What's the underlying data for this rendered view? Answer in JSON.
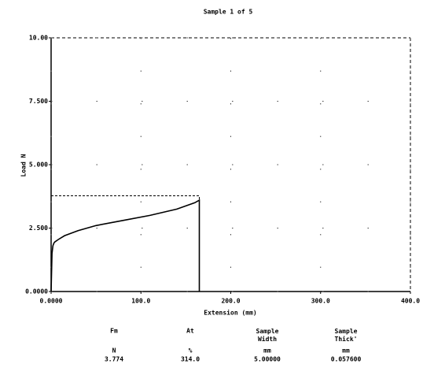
{
  "chart_data": {
    "type": "line",
    "title": "Sample 1 of 5",
    "xlabel": "Extension (mm)",
    "ylabel": "Load N",
    "x": [
      0,
      1,
      2,
      3,
      4,
      8,
      15,
      30,
      50,
      80,
      110,
      140,
      160,
      165,
      165
    ],
    "series": [
      {
        "name": "Sample 1",
        "color": "#000000",
        "values": [
          0,
          1.5,
          1.8,
          1.9,
          1.95,
          2.05,
          2.2,
          2.4,
          2.6,
          2.8,
          3.0,
          3.25,
          3.5,
          3.6,
          0
        ]
      }
    ],
    "xlim": [
      0,
      400
    ],
    "ylim": [
      0,
      10
    ],
    "xticks": [
      {
        "value": 0,
        "label": "0.0000"
      },
      {
        "value": 100,
        "label": "100.0"
      },
      {
        "value": 200,
        "label": "200.0"
      },
      {
        "value": 300,
        "label": "300.0"
      },
      {
        "value": 400,
        "label": "400.0"
      }
    ],
    "yticks": [
      {
        "value": 0,
        "label": "0.0000"
      },
      {
        "value": 2.5,
        "label": "2.500"
      },
      {
        "value": 5,
        "label": "5.000"
      },
      {
        "value": 7.5,
        "label": "7.500"
      },
      {
        "value": 10,
        "label": "10.00"
      }
    ],
    "grid": true,
    "results": [
      {
        "name": "Fm",
        "unit": "N",
        "value": 3.774
      },
      {
        "name": "At",
        "unit": "%",
        "value": "314.0"
      },
      {
        "name": "Sample Width",
        "unit": "mm",
        "value": "5.00000"
      },
      {
        "name": "Sample Thick'",
        "unit": "mm",
        "value": "0.057600"
      }
    ]
  }
}
